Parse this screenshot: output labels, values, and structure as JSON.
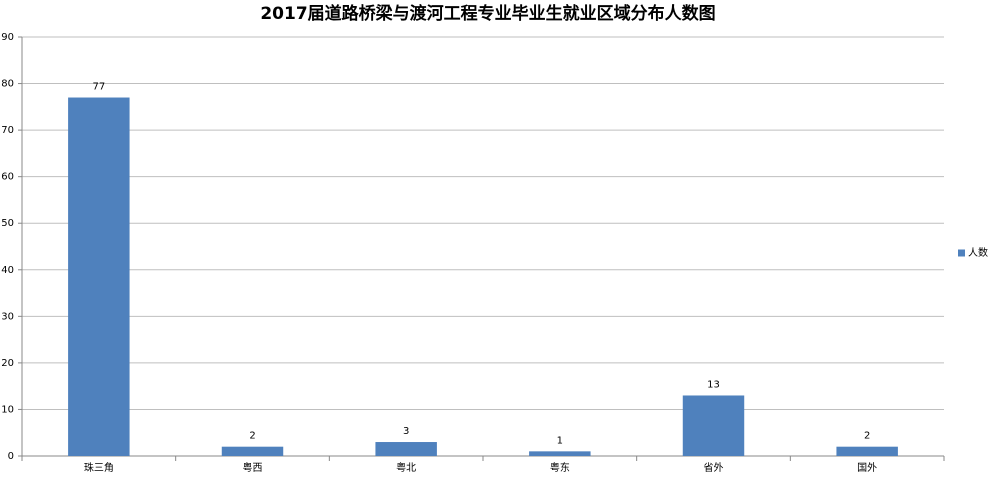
{
  "chart_data": {
    "type": "bar",
    "title": "2017届道路桥梁与渡河工程专业毕业生就业区域分布人数图",
    "categories": [
      "珠三角",
      "粤西",
      "粤北",
      "粤东",
      "省外",
      "国外"
    ],
    "series": [
      {
        "name": "人数",
        "color": "#4f81bd",
        "values": [
          77,
          2,
          3,
          1,
          13,
          2
        ]
      }
    ],
    "ylim": [
      0,
      90
    ],
    "yticks": [
      0,
      10,
      20,
      30,
      40,
      50,
      60,
      70,
      80,
      90
    ],
    "grid": true,
    "legend": "right"
  }
}
